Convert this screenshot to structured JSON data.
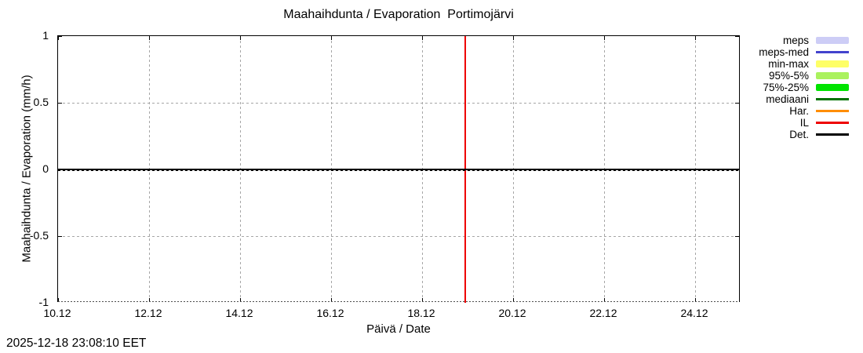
{
  "header": {
    "title": "Maahaihdunta / Evaporation  Portimojärvi"
  },
  "axes": {
    "y_label": "Maahaihdunta / Evaporation (mm/h)",
    "x_label": "Päivä / Date",
    "y_ticks": [
      "1",
      "0.5",
      "0",
      "-0.5",
      "-1"
    ],
    "x_ticks": [
      "10.12",
      "12.12",
      "14.12",
      "16.12",
      "18.12",
      "20.12",
      "22.12",
      "24.12"
    ]
  },
  "footer": {
    "timestamp": "2025-12-18 23:08:10 EET"
  },
  "legend": {
    "items": [
      {
        "label": "meps",
        "type": "band",
        "color": "#cdcdf6"
      },
      {
        "label": "meps-med",
        "type": "line",
        "color": "#4343cd"
      },
      {
        "label": "min-max",
        "type": "band",
        "color": "#feff66"
      },
      {
        "label": "95%-5%",
        "type": "band",
        "color": "#aaf25e"
      },
      {
        "label": "75%-25%",
        "type": "band",
        "color": "#00e400"
      },
      {
        "label": "mediaani",
        "type": "line",
        "color": "#007200"
      },
      {
        "label": "Har.",
        "type": "line",
        "color": "#ff8d00"
      },
      {
        "label": "IL",
        "type": "line",
        "color": "#ee0000"
      },
      {
        "label": "Det.",
        "type": "line",
        "color": "#000000"
      }
    ]
  },
  "chart_data": {
    "type": "line",
    "title": "Maahaihdunta / Evaporation  Portimojärvi",
    "xlabel": "Päivä / Date",
    "ylabel": "Maahaihdunta / Evaporation (mm/h)",
    "x_ticks": [
      "10.12",
      "12.12",
      "14.12",
      "16.12",
      "18.12",
      "20.12",
      "22.12",
      "24.12"
    ],
    "y_ticks": [
      1,
      0.5,
      0,
      -0.5,
      -1
    ],
    "xlim": [
      "10.12",
      "25.12"
    ],
    "ylim": [
      -1,
      1
    ],
    "grid": true,
    "grid_style": "dashed-gray",
    "legend_position": "outside-right",
    "series": [
      {
        "name": "Det.",
        "color": "#000000",
        "style": "solid",
        "x": [
          "10.12",
          "25.12"
        ],
        "values": [
          0,
          0
        ]
      }
    ],
    "annotations": [
      {
        "type": "vline",
        "x_value": "18.12 23:08",
        "x_fraction": 0.595,
        "color": "#ee0000",
        "series": "IL"
      }
    ]
  }
}
